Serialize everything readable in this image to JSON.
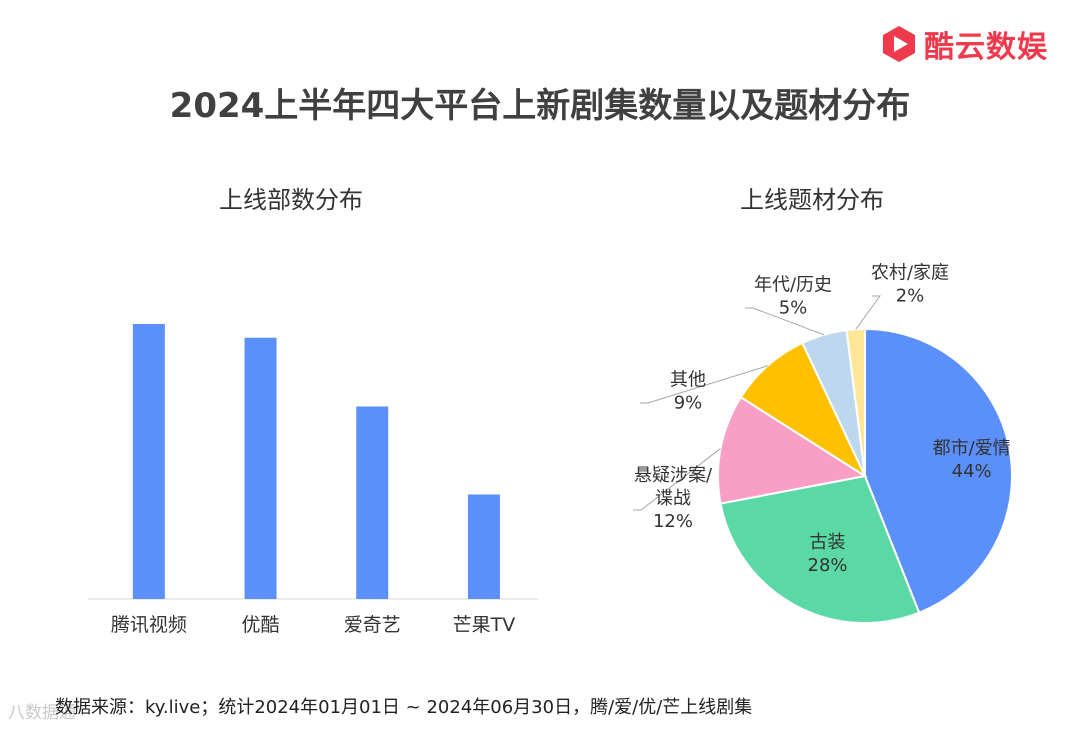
{
  "logo": {
    "text": "酷云数娱",
    "brand_color": "#ef3a4d"
  },
  "title": "2024上半年四大平台上新剧集数量以及题材分布",
  "watermark": "八数据通",
  "footnote": "数据来源：ky.live；统计2024年01月01日 ~ 2024年06月30日，腾/爱/优/芒上线剧集",
  "chart_data": [
    {
      "type": "bar",
      "title": "上线部数分布",
      "categories": [
        "腾讯视频",
        "优酷",
        "爱奇艺",
        "芒果TV"
      ],
      "values": [
        100,
        95,
        70,
        38
      ],
      "note": "no value axis or data labels shown; values are relative bar heights",
      "ylim": [
        0,
        100
      ],
      "color": "#5b8ff9",
      "grid": false,
      "legend": "none"
    },
    {
      "type": "pie",
      "title": "上线题材分布",
      "slices": [
        {
          "label": "都市/爱情",
          "value": 44,
          "value_text": "44%",
          "color": "#5b8ff9"
        },
        {
          "label": "古装",
          "value": 28,
          "value_text": "28%",
          "color": "#5ad8a6"
        },
        {
          "label": "悬疑涉案/谍战",
          "value": 12,
          "value_text": "12%",
          "color": "#f99fc6"
        },
        {
          "label": "其他",
          "value": 9,
          "value_text": "9%",
          "color": "#ffc000"
        },
        {
          "label": "年代/历史",
          "value": 5,
          "value_text": "5%",
          "color": "#bdd7ee"
        },
        {
          "label": "农村/家庭",
          "value": 2,
          "value_text": "2%",
          "color": "#ffe699"
        }
      ]
    }
  ]
}
